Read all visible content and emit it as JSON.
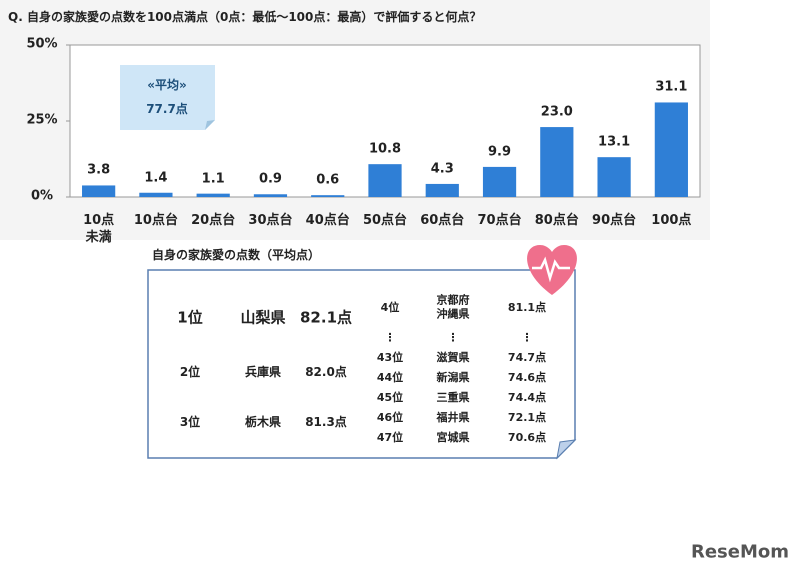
{
  "chart_data": {
    "type": "bar",
    "title": "Q.  自身の家族愛の点数を100点満点（0点：最低～100点：最高）で評価すると何点？",
    "categories": [
      "10点\n未満",
      "10点台",
      "20点台",
      "30点台",
      "40点台",
      "50点台",
      "60点台",
      "70点台",
      "80点台",
      "90点台",
      "100点"
    ],
    "values": [
      3.8,
      1.4,
      1.1,
      0.9,
      0.6,
      10.8,
      4.3,
      9.9,
      23.0,
      13.1,
      31.1
    ],
    "value_labels": [
      "3.8",
      "1.4",
      "1.1",
      "0.9",
      "0.6",
      "10.8",
      "4.3",
      "9.9",
      "23.0",
      "13.1",
      "31.1"
    ],
    "color": "#2f7fd6",
    "ylim": [
      0,
      50
    ],
    "yticks": [
      {
        "value": 0,
        "label": "0%"
      },
      {
        "value": 25,
        "label": "25%"
      },
      {
        "value": 50,
        "label": "50%"
      }
    ],
    "annotation": {
      "title": "«平均»",
      "text": "77.7点"
    }
  },
  "ranking": {
    "title": "自身の家族愛の点数（平均点）",
    "top": [
      [
        "1位",
        "山梨県",
        "82.1点"
      ],
      [
        "2位",
        "兵庫県",
        "82.0点"
      ],
      [
        "3位",
        "栃木県",
        "81.3点"
      ]
    ],
    "rest": [
      [
        "4位",
        "京都府\n沖縄県",
        "81.1点"
      ],
      [
        "⋮",
        "⋮",
        "⋮"
      ],
      [
        "43位",
        "滋賀県",
        "74.7点"
      ],
      [
        "44位",
        "新潟県",
        "74.6点"
      ],
      [
        "45位",
        "三重県",
        "74.4点"
      ],
      [
        "46位",
        "福井県",
        "72.1点"
      ],
      [
        "47位",
        "宮城県",
        "70.6点"
      ]
    ]
  },
  "watermark": "ReseMom"
}
